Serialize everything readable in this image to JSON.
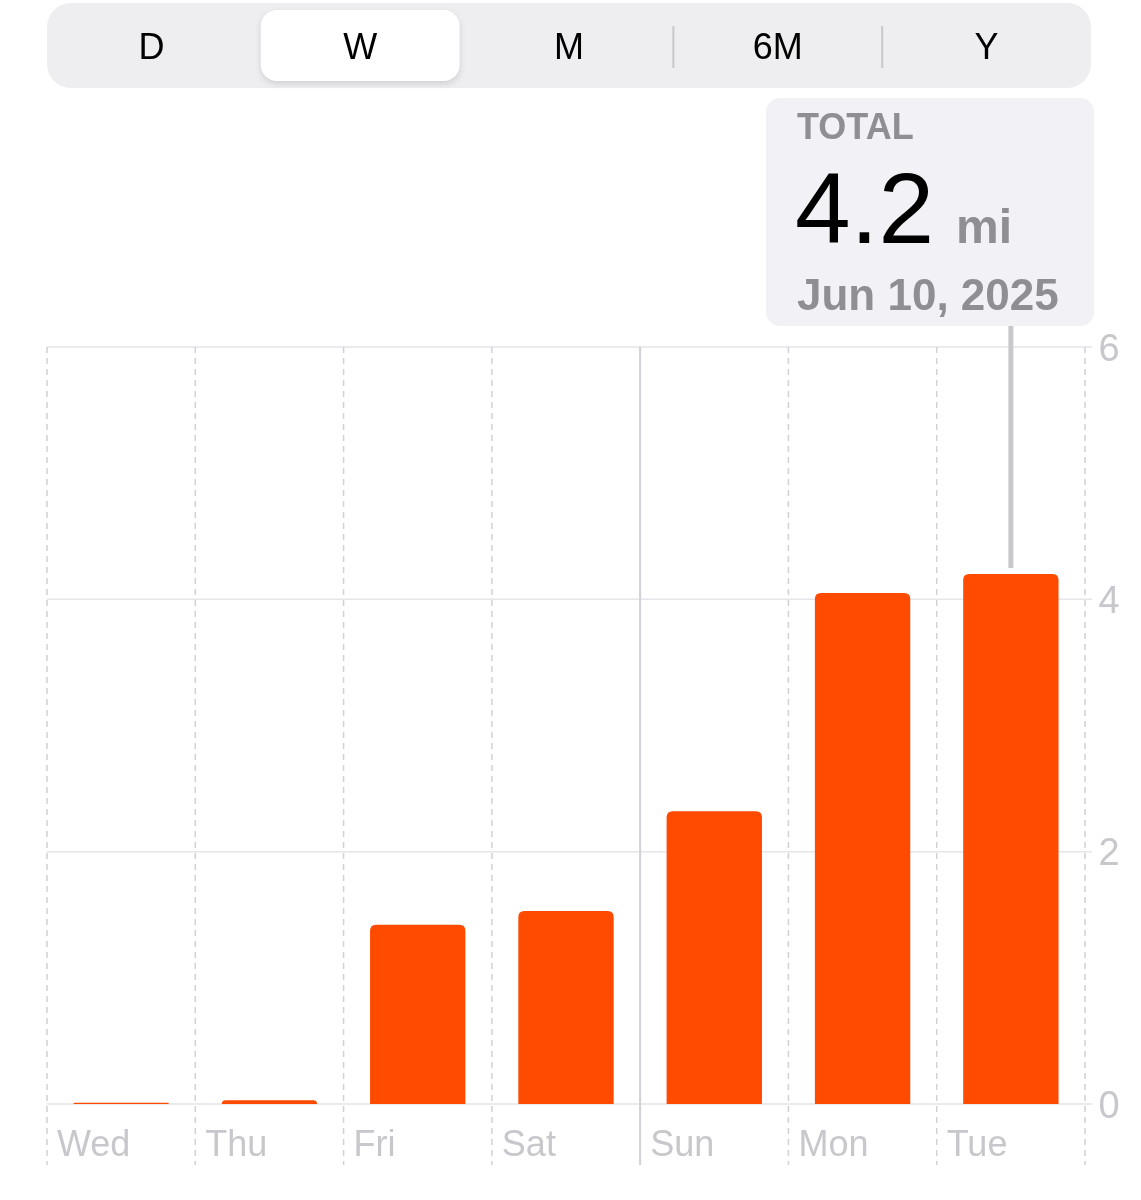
{
  "chart_data": {
    "type": "bar",
    "categories": [
      "Wed",
      "Thu",
      "Fri",
      "Sat",
      "Sun",
      "Mon",
      "Tue"
    ],
    "values": [
      0.01,
      0.03,
      1.42,
      1.53,
      2.32,
      4.05,
      4.2
    ],
    "color": "#ff4b00",
    "ylim": [
      0,
      6
    ],
    "yticks": [
      0,
      2,
      4,
      6
    ],
    "grid": true,
    "ref_lines": [
      {
        "axis": "x",
        "value": "Sun",
        "color": "#d1d1d6"
      }
    ],
    "annotations": [
      "D",
      "W",
      "M",
      "6M",
      "Y",
      "TOTAL",
      "4.2 mi",
      "Jun 10, 2025"
    ]
  }
}
